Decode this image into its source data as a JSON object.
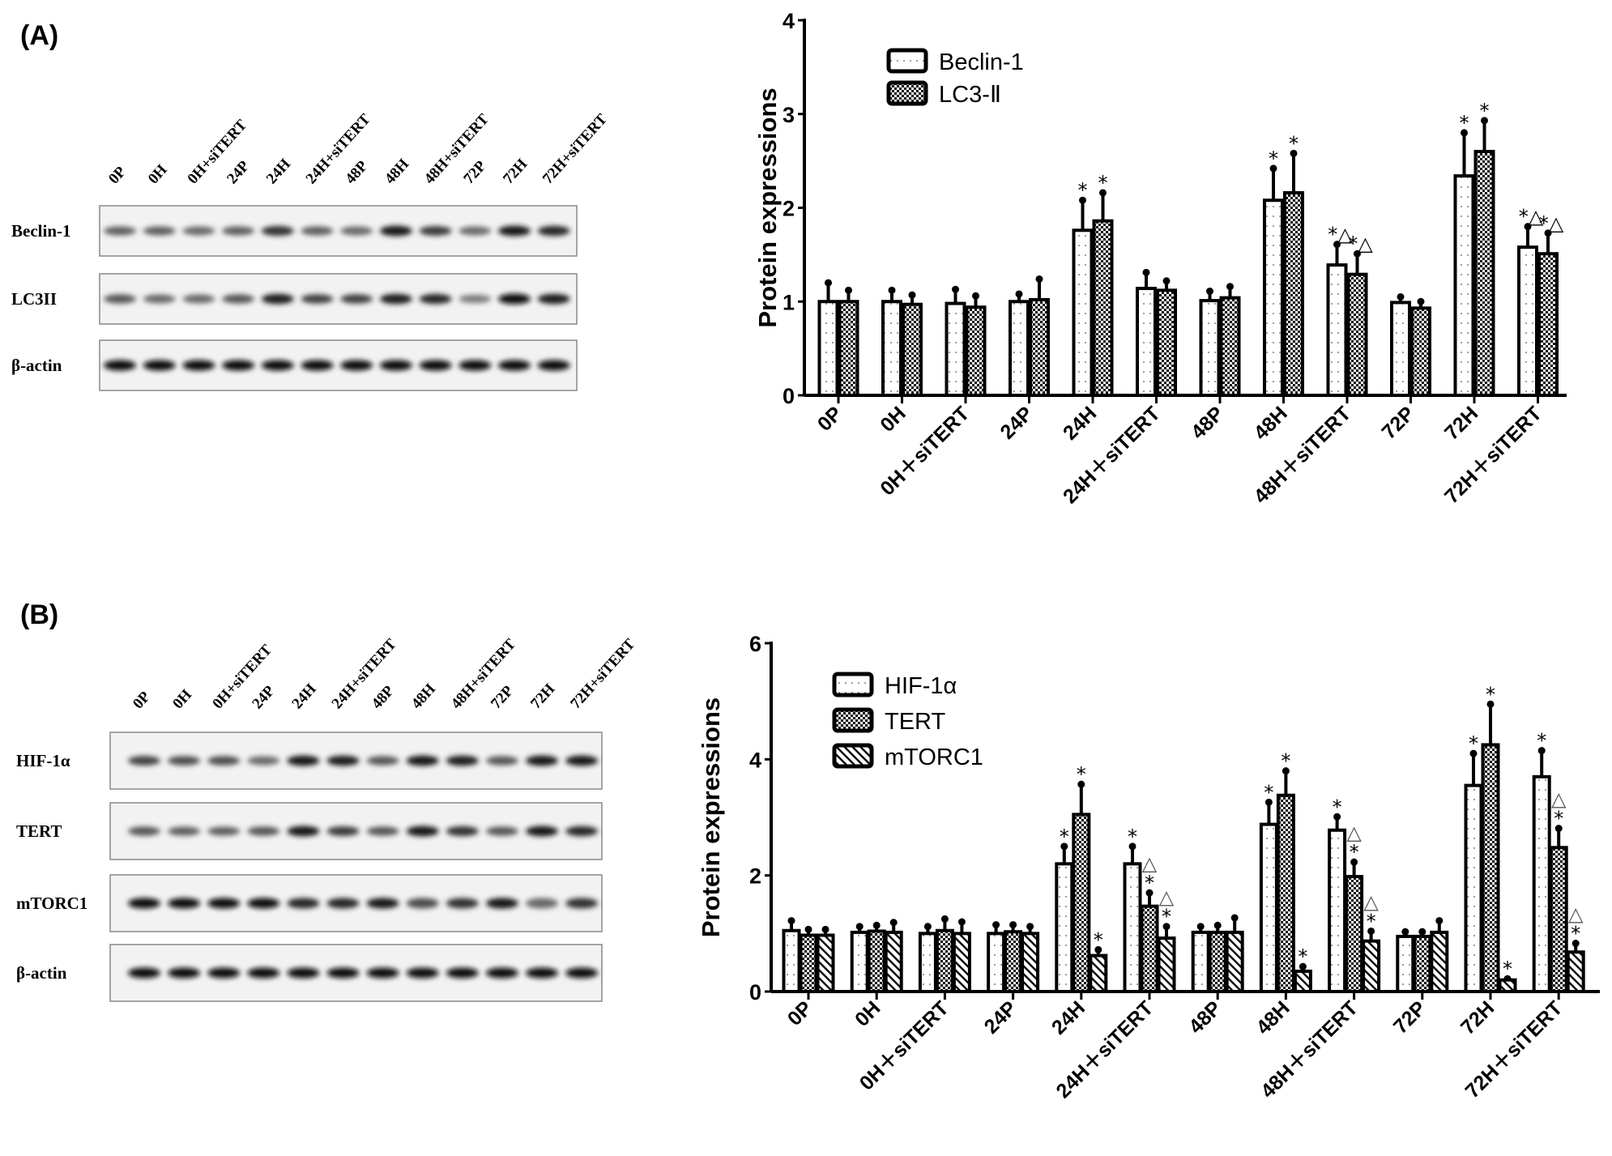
{
  "panels": [
    {
      "label": "(A)",
      "blot": {
        "lanes": [
          "0P",
          "0H",
          "0H+siTERT",
          "24P",
          "24H",
          "24H+siTERT",
          "48P",
          "48H",
          "48H+siTERT",
          "72P",
          "72H",
          "72H+siTERT"
        ],
        "rows": [
          {
            "name": "Beclin-1",
            "intensity": [
              0.55,
              0.55,
              0.5,
              0.55,
              0.8,
              0.55,
              0.5,
              0.95,
              0.75,
              0.5,
              0.95,
              0.85
            ]
          },
          {
            "name": "LC3II",
            "intensity": [
              0.6,
              0.5,
              0.5,
              0.6,
              0.9,
              0.7,
              0.7,
              0.9,
              0.85,
              0.4,
              1,
              0.9
            ]
          },
          {
            "name": "β-actin",
            "intensity": [
              1,
              1,
              1,
              1,
              1,
              1,
              1,
              1,
              1,
              1,
              1,
              1
            ]
          }
        ]
      }
    },
    {
      "label": "(B)",
      "blot": {
        "lanes": [
          "0P",
          "0H",
          "0H+siTERT",
          "24P",
          "24H",
          "24H+siTERT",
          "48P",
          "48H",
          "48H+siTERT",
          "72P",
          "72H",
          "72H+siTERT"
        ],
        "rows": [
          {
            "name": "HIF-1α",
            "intensity": [
              0.7,
              0.65,
              0.65,
              0.5,
              0.95,
              0.9,
              0.6,
              0.95,
              0.9,
              0.6,
              0.95,
              0.95
            ]
          },
          {
            "name": "TERT",
            "intensity": [
              0.6,
              0.55,
              0.55,
              0.6,
              0.95,
              0.75,
              0.6,
              0.95,
              0.8,
              0.6,
              0.95,
              0.85
            ]
          },
          {
            "name": "mTORC1",
            "intensity": [
              1,
              1,
              1,
              1,
              0.85,
              0.85,
              0.95,
              0.65,
              0.8,
              0.95,
              0.5,
              0.8
            ]
          },
          {
            "name": "β-actin",
            "intensity": [
              1,
              1,
              1,
              1,
              1,
              1,
              1,
              1,
              1,
              1,
              1,
              1
            ]
          }
        ]
      }
    }
  ],
  "chart_data": [
    {
      "type": "bar",
      "title": "",
      "xlabel": "",
      "ylabel": "Protein expressions",
      "ylim": [
        0,
        4
      ],
      "yticks": [
        0,
        1,
        2,
        3,
        4
      ],
      "grid": false,
      "legend_position": "top-left",
      "categories": [
        "0P",
        "0H",
        "0H+siTERT",
        "24P",
        "24H",
        "24H+siTERT",
        "48P",
        "48H",
        "48H+siTERT",
        "72P",
        "72H",
        "72H+siTERT"
      ],
      "series": [
        {
          "name": "Beclin-1",
          "pattern": "dots",
          "values": [
            1.0,
            1.0,
            0.98,
            1.0,
            1.76,
            1.14,
            1.01,
            2.08,
            1.39,
            0.99,
            2.34,
            1.58
          ],
          "errors": [
            0.2,
            0.12,
            0.15,
            0.08,
            0.32,
            0.17,
            0.1,
            0.34,
            0.22,
            0.06,
            0.46,
            0.22
          ],
          "annotations": [
            "",
            "",
            "",
            "",
            "*",
            "",
            "",
            "*",
            "*△",
            "",
            "*",
            "*△"
          ]
        },
        {
          "name": "LC3-Ⅱ",
          "pattern": "checker",
          "values": [
            1.0,
            0.97,
            0.94,
            1.02,
            1.86,
            1.12,
            1.04,
            2.16,
            1.29,
            0.93,
            2.6,
            1.51
          ],
          "errors": [
            0.12,
            0.1,
            0.12,
            0.22,
            0.3,
            0.1,
            0.12,
            0.42,
            0.22,
            0.07,
            0.33,
            0.22
          ],
          "annotations": [
            "",
            "",
            "",
            "",
            "*",
            "",
            "",
            "*",
            "*△",
            "",
            "*",
            "*△"
          ]
        }
      ]
    },
    {
      "type": "bar",
      "title": "",
      "xlabel": "",
      "ylabel": "Protein expressions",
      "ylim": [
        0,
        6
      ],
      "yticks": [
        0,
        2,
        4,
        6
      ],
      "grid": false,
      "legend_position": "top-left",
      "categories": [
        "0P",
        "0H",
        "0H+siTERT",
        "24P",
        "24H",
        "24H+siTERT",
        "48P",
        "48H",
        "48H+siTERT",
        "72P",
        "72H",
        "72H+siTERT"
      ],
      "series": [
        {
          "name": "HIF-1α",
          "pattern": "dots",
          "values": [
            1.05,
            1.02,
            1.0,
            1.0,
            2.2,
            2.2,
            1.02,
            2.88,
            2.78,
            0.95,
            3.55,
            3.7
          ],
          "errors": [
            0.17,
            0.1,
            0.12,
            0.15,
            0.3,
            0.3,
            0.1,
            0.38,
            0.23,
            0.08,
            0.55,
            0.45
          ],
          "annotations": [
            "",
            "",
            "",
            "",
            "*",
            "*",
            "",
            "*",
            "*",
            "",
            "*",
            "*"
          ]
        },
        {
          "name": "TERT",
          "pattern": "checker",
          "values": [
            0.97,
            1.04,
            1.05,
            1.03,
            3.05,
            1.47,
            1.02,
            3.38,
            1.98,
            0.95,
            4.25,
            2.48
          ],
          "errors": [
            0.1,
            0.1,
            0.2,
            0.12,
            0.52,
            0.23,
            0.12,
            0.42,
            0.25,
            0.08,
            0.7,
            0.33
          ],
          "annotations": [
            "",
            "",
            "",
            "",
            "*",
            "△*",
            "",
            "*",
            "△*",
            "",
            "*",
            "△*"
          ]
        },
        {
          "name": "mTORC1",
          "pattern": "stripes",
          "values": [
            0.97,
            1.02,
            1.0,
            1.0,
            0.62,
            0.92,
            1.02,
            0.35,
            0.87,
            1.02,
            0.2,
            0.68
          ],
          "errors": [
            0.1,
            0.17,
            0.2,
            0.12,
            0.1,
            0.2,
            0.25,
            0.08,
            0.17,
            0.2,
            0.02,
            0.15
          ],
          "annotations": [
            "",
            "",
            "",
            "",
            "*",
            "△*",
            "",
            "*",
            "△*",
            "",
            "*",
            "△*"
          ]
        }
      ]
    }
  ]
}
